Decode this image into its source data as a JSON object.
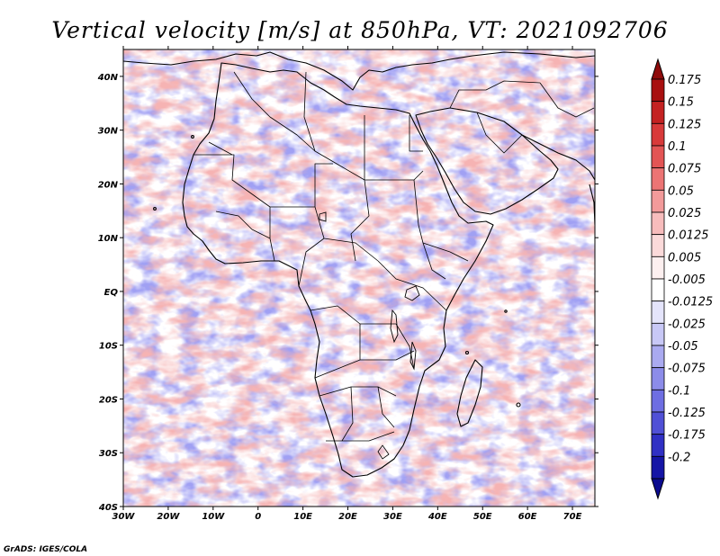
{
  "title": "Vertical velocity [m/s] at 850hPa, VT: 2021092706",
  "credit": "GrADS: IGES/COLA",
  "map": {
    "lon_range": [
      -30,
      75
    ],
    "lat_range": [
      -40,
      45
    ],
    "lon_ticks": [
      "30W",
      "20W",
      "10W",
      "0",
      "10E",
      "20E",
      "30E",
      "40E",
      "50E",
      "60E",
      "70E"
    ],
    "lat_ticks": [
      "40N",
      "30N",
      "20N",
      "10N",
      "EQ",
      "10S",
      "20S",
      "30S",
      "40S"
    ],
    "field_description_colors": {
      "land_outline": "#000000",
      "background": "#ffffff"
    }
  },
  "colorbar": {
    "levels": [
      {
        "label": "0.175",
        "color": "#a81010"
      },
      {
        "label": "0.15",
        "color": "#c42222"
      },
      {
        "label": "0.125",
        "color": "#d83a3a"
      },
      {
        "label": "0.1",
        "color": "#e35555"
      },
      {
        "label": "0.075",
        "color": "#ec7474"
      },
      {
        "label": "0.05",
        "color": "#f29a9a"
      },
      {
        "label": "0.025",
        "color": "#f7bcbc"
      },
      {
        "label": "0.0125",
        "color": "#fbdada"
      },
      {
        "label": "0.005",
        "color": "#fdf0f0"
      },
      {
        "label": "-0.005",
        "color": "#ffffff"
      },
      {
        "label": "-0.0125",
        "color": "#e4e4fb"
      },
      {
        "label": "-0.025",
        "color": "#c8c8f6"
      },
      {
        "label": "-0.05",
        "color": "#aaaaf0"
      },
      {
        "label": "-0.075",
        "color": "#8c8ce9"
      },
      {
        "label": "-0.1",
        "color": "#6e6ee2"
      },
      {
        "label": "-0.125",
        "color": "#5050d6"
      },
      {
        "label": "-0.175",
        "color": "#3030c4"
      },
      {
        "label": "-0.2",
        "color": "#1515a6"
      }
    ],
    "top_arrow_color": "#8f0b0b",
    "bottom_arrow_color": "#0b0b8f"
  }
}
